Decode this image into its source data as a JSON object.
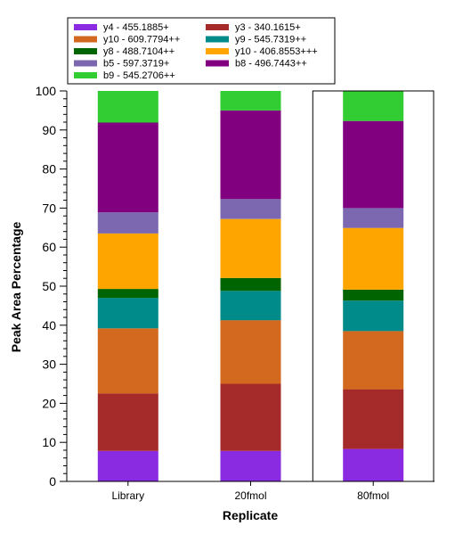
{
  "chart_data": {
    "type": "bar",
    "stacked": true,
    "title": "",
    "xlabel": "Replicate",
    "ylabel": "Peak Area Percentage",
    "ylim": [
      0,
      100
    ],
    "yticks": [
      0,
      10,
      20,
      30,
      40,
      50,
      60,
      70,
      80,
      90,
      100
    ],
    "categories": [
      "Library",
      "20fmol",
      "80fmol"
    ],
    "selected_category": "80fmol",
    "legend_position": "top",
    "series": [
      {
        "name": "y4 - 455.1885+",
        "color": "#8a2be2",
        "values": [
          7.8,
          7.8,
          8.3
        ]
      },
      {
        "name": "y3 - 340.1615+",
        "color": "#a52a2a",
        "values": [
          14.7,
          17.2,
          15.3
        ]
      },
      {
        "name": "y10 - 609.7794++",
        "color": "#d2691e",
        "values": [
          16.7,
          16.3,
          14.9
        ]
      },
      {
        "name": "y9 - 545.7319++",
        "color": "#008b8b",
        "values": [
          7.8,
          7.5,
          7.8
        ]
      },
      {
        "name": "y8 - 488.7104++",
        "color": "#006400",
        "values": [
          2.3,
          3.3,
          2.8
        ]
      },
      {
        "name": "y10 - 406.8553+++",
        "color": "#ffa500",
        "values": [
          14.2,
          15.1,
          15.8
        ]
      },
      {
        "name": "b5 - 597.3719+",
        "color": "#7b68b0",
        "values": [
          5.4,
          5.1,
          5.1
        ]
      },
      {
        "name": "b8 - 496.7443++",
        "color": "#800080",
        "values": [
          23.0,
          22.7,
          22.3
        ]
      },
      {
        "name": "b9 - 545.2706++",
        "color": "#32cd32",
        "values": [
          8.1,
          5.0,
          7.7
        ]
      }
    ]
  }
}
